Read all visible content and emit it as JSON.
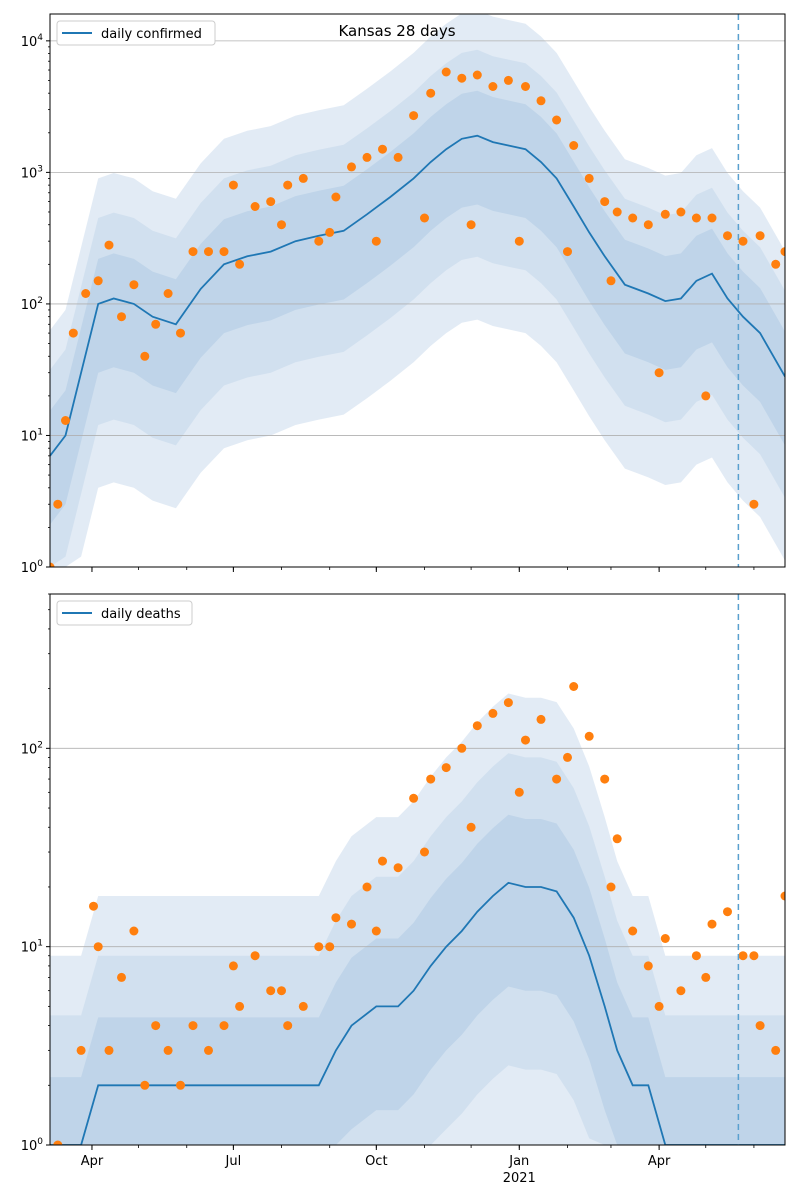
{
  "colors": {
    "line": "#1f77b4",
    "points": "#ff7f0e",
    "band_outer": "#dfe9f4",
    "band_mid": "#cfdfee",
    "band_inner": "#bcd3e8",
    "grid": "#b0b0b0",
    "axes": "#000000",
    "vline": "#5aa0cf"
  },
  "chart_data": [
    {
      "type": "line",
      "title": "Kansas 28 days",
      "legend": [
        "daily confirmed"
      ],
      "legend_position": "top-left",
      "y_scale": "log",
      "ylim": [
        1,
        16000
      ],
      "xlim": [
        "2020-03-05",
        "2021-06-21"
      ],
      "y_ticks": [
        {
          "value": 1,
          "label": "10^0"
        },
        {
          "value": 10,
          "label": "10^1"
        },
        {
          "value": 100,
          "label": "10^2"
        },
        {
          "value": 1000,
          "label": "10^3"
        },
        {
          "value": 10000,
          "label": "10^4"
        }
      ],
      "grid": "horizontal",
      "vline_date": "2021-05-22",
      "series": [
        {
          "name": "daily confirmed",
          "kind": "line",
          "x": [
            "2020-03-05",
            "2020-03-15",
            "2020-03-25",
            "2020-04-05",
            "2020-04-15",
            "2020-04-28",
            "2020-05-10",
            "2020-05-25",
            "2020-06-10",
            "2020-06-25",
            "2020-07-10",
            "2020-07-25",
            "2020-08-10",
            "2020-08-25",
            "2020-09-10",
            "2020-09-25",
            "2020-10-10",
            "2020-10-25",
            "2020-11-05",
            "2020-11-15",
            "2020-11-25",
            "2020-12-05",
            "2020-12-15",
            "2020-12-25",
            "2021-01-05",
            "2021-01-15",
            "2021-01-25",
            "2021-02-05",
            "2021-02-15",
            "2021-02-25",
            "2021-03-10",
            "2021-03-25",
            "2021-04-05",
            "2021-04-15",
            "2021-04-25",
            "2021-05-05",
            "2021-05-15",
            "2021-05-25",
            "2021-06-05",
            "2021-06-21"
          ],
          "y": [
            7,
            10,
            30,
            100,
            110,
            100,
            80,
            70,
            130,
            200,
            230,
            250,
            300,
            330,
            360,
            480,
            650,
            900,
            1200,
            1500,
            1800,
            1900,
            1700,
            1600,
            1500,
            1200,
            900,
            550,
            350,
            230,
            140,
            120,
            105,
            110,
            150,
            170,
            110,
            80,
            60,
            28
          ]
        },
        {
          "name": "daily observed",
          "kind": "scatter",
          "x": [
            "2020-03-05",
            "2020-03-10",
            "2020-03-15",
            "2020-03-20",
            "2020-03-28",
            "2020-04-05",
            "2020-04-12",
            "2020-04-20",
            "2020-04-28",
            "2020-05-05",
            "2020-05-12",
            "2020-05-20",
            "2020-05-28",
            "2020-06-05",
            "2020-06-15",
            "2020-06-25",
            "2020-07-05",
            "2020-07-15",
            "2020-07-25",
            "2020-08-05",
            "2020-08-15",
            "2020-08-25",
            "2020-09-05",
            "2020-09-15",
            "2020-09-25",
            "2020-10-05",
            "2020-10-15",
            "2020-10-25",
            "2020-11-05",
            "2020-11-15",
            "2020-11-25",
            "2020-12-05",
            "2020-12-15",
            "2020-12-25",
            "2021-01-05",
            "2021-01-15",
            "2021-01-25",
            "2021-02-05",
            "2021-02-15",
            "2021-02-25",
            "2021-03-05",
            "2021-03-15",
            "2021-03-25",
            "2021-04-05",
            "2021-04-15",
            "2021-04-25",
            "2021-05-05",
            "2021-05-15",
            "2021-05-25",
            "2021-06-05",
            "2021-06-15",
            "2021-06-21",
            "2020-07-01",
            "2020-08-01",
            "2020-09-01",
            "2020-10-01",
            "2020-11-01",
            "2020-12-01",
            "2021-01-01",
            "2021-02-01",
            "2021-03-01",
            "2021-04-01",
            "2021-05-01",
            "2021-06-01"
          ],
          "y": [
            1,
            3,
            13,
            60,
            120,
            150,
            280,
            80,
            140,
            40,
            70,
            120,
            60,
            250,
            250,
            250,
            200,
            550,
            600,
            800,
            900,
            300,
            650,
            1100,
            1300,
            1500,
            1300,
            2700,
            4000,
            5800,
            5200,
            5500,
            4500,
            5000,
            4500,
            3500,
            2500,
            1600,
            900,
            600,
            500,
            450,
            400,
            480,
            500,
            450,
            450,
            330,
            300,
            330,
            200,
            250,
            800,
            400,
            350,
            300,
            450,
            400,
            300,
            250,
            150,
            30,
            20,
            3
          ]
        }
      ]
    },
    {
      "type": "line",
      "legend": [
        "daily deaths"
      ],
      "legend_position": "top-left",
      "y_scale": "log",
      "ylim": [
        1,
        600
      ],
      "xlim": [
        "2020-03-05",
        "2021-06-21"
      ],
      "y_ticks": [
        {
          "value": 1,
          "label": "10^0"
        },
        {
          "value": 10,
          "label": "10^1"
        },
        {
          "value": 100,
          "label": "10^2"
        }
      ],
      "x_ticks": [
        {
          "date": "2020-04-01",
          "label": "Apr",
          "sub": ""
        },
        {
          "date": "2020-07-01",
          "label": "Jul",
          "sub": ""
        },
        {
          "date": "2020-10-01",
          "label": "Oct",
          "sub": ""
        },
        {
          "date": "2021-01-01",
          "label": "Jan",
          "sub": "2021"
        },
        {
          "date": "2021-04-01",
          "label": "Apr",
          "sub": ""
        }
      ],
      "grid": "horizontal",
      "vline_date": "2021-05-22",
      "series": [
        {
          "name": "daily deaths",
          "kind": "line",
          "x": [
            "2020-03-05",
            "2020-03-25",
            "2020-04-05",
            "2020-04-15",
            "2020-04-25",
            "2020-05-10",
            "2020-05-25",
            "2020-06-10",
            "2020-06-25",
            "2020-07-10",
            "2020-07-25",
            "2020-08-10",
            "2020-08-25",
            "2020-09-05",
            "2020-09-15",
            "2020-10-01",
            "2020-10-15",
            "2020-10-25",
            "2020-11-05",
            "2020-11-15",
            "2020-11-25",
            "2020-12-05",
            "2020-12-15",
            "2020-12-25",
            "2021-01-05",
            "2021-01-15",
            "2021-01-25",
            "2021-02-05",
            "2021-02-15",
            "2021-02-25",
            "2021-03-05",
            "2021-03-15",
            "2021-03-25",
            "2021-04-05",
            "2021-04-20",
            "2021-05-05",
            "2021-05-20",
            "2021-06-05",
            "2021-06-21"
          ],
          "y": [
            1,
            1,
            2,
            2,
            2,
            2,
            2,
            2,
            2,
            2,
            2,
            2,
            2,
            3,
            4,
            5,
            5,
            6,
            8,
            10,
            12,
            15,
            18,
            21,
            20,
            20,
            19,
            14,
            9,
            5,
            3,
            2,
            2,
            1,
            1,
            1,
            1,
            1,
            1
          ]
        },
        {
          "name": "daily observed",
          "kind": "scatter",
          "x": [
            "2020-03-10",
            "2020-03-25",
            "2020-04-02",
            "2020-04-05",
            "2020-04-12",
            "2020-04-20",
            "2020-04-28",
            "2020-05-05",
            "2020-05-12",
            "2020-05-20",
            "2020-05-28",
            "2020-06-05",
            "2020-06-15",
            "2020-06-25",
            "2020-07-05",
            "2020-07-15",
            "2020-07-25",
            "2020-08-05",
            "2020-08-15",
            "2020-08-25",
            "2020-09-05",
            "2020-09-15",
            "2020-09-25",
            "2020-10-05",
            "2020-10-15",
            "2020-10-25",
            "2020-11-05",
            "2020-11-15",
            "2020-11-25",
            "2020-12-05",
            "2020-12-15",
            "2020-12-25",
            "2021-01-05",
            "2021-01-15",
            "2021-01-25",
            "2021-02-05",
            "2021-02-15",
            "2021-02-25",
            "2021-03-05",
            "2021-03-15",
            "2021-03-25",
            "2021-04-05",
            "2021-04-15",
            "2021-04-25",
            "2021-05-05",
            "2021-05-15",
            "2021-05-25",
            "2021-06-05",
            "2021-06-15",
            "2021-06-21",
            "2020-07-01",
            "2020-08-01",
            "2020-09-01",
            "2020-10-01",
            "2020-11-01",
            "2020-12-01",
            "2021-01-01",
            "2021-02-01",
            "2021-03-01",
            "2021-04-01",
            "2021-05-01",
            "2021-06-01"
          ],
          "y": [
            1,
            3,
            16,
            10,
            3,
            7,
            12,
            2,
            4,
            3,
            2,
            4,
            3,
            4,
            5,
            9,
            6,
            4,
            5,
            10,
            14,
            13,
            20,
            27,
            25,
            56,
            70,
            80,
            100,
            130,
            150,
            170,
            110,
            140,
            70,
            205,
            115,
            70,
            35,
            12,
            8,
            11,
            6,
            9,
            13,
            15,
            9,
            4,
            3,
            18,
            8,
            6,
            10,
            12,
            30,
            40,
            60,
            90,
            20,
            5,
            7,
            9
          ]
        }
      ]
    }
  ]
}
